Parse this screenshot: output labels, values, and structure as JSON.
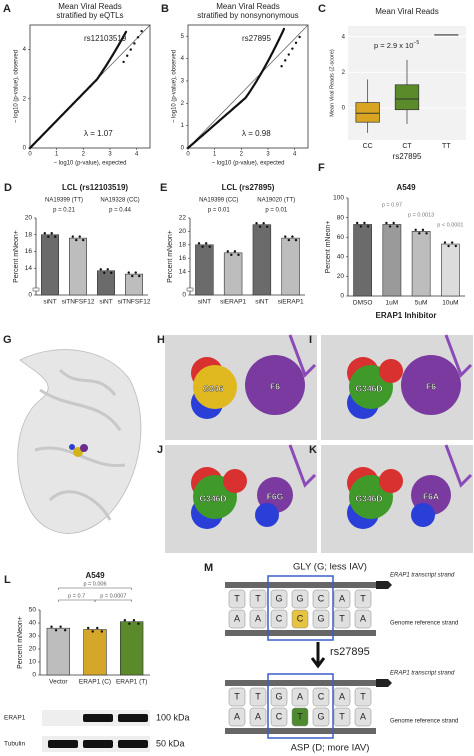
{
  "panels": {
    "A": {
      "letter": "A",
      "title": [
        "Mean Viral Reads",
        "stratified by eQTLs"
      ],
      "snp": "rs12103519",
      "lambda": "λ = 1.07",
      "xlabel": "− log10 (p-value), expected",
      "ylabel": "− log10 (p-value), observed",
      "xlim": [
        0,
        4.5
      ],
      "ylim": [
        0,
        5
      ],
      "xticks": [
        0,
        1,
        2,
        3,
        4
      ],
      "yticks": [
        0,
        2,
        4
      ]
    },
    "B": {
      "letter": "B",
      "title": [
        "Mean Viral Reads",
        "stratified by nonsynonymous"
      ],
      "snp": "rs27895",
      "lambda": "λ = 0.98",
      "xlabel": "− log10 (p-value), expected",
      "ylabel": "− log10 (p-value), observed",
      "xlim": [
        0,
        4.5
      ],
      "ylim": [
        0,
        5.5
      ],
      "xticks": [
        0,
        1,
        2,
        3,
        4
      ],
      "yticks": [
        0,
        1,
        2,
        3,
        4,
        5
      ]
    },
    "C": {
      "letter": "C",
      "title": "Mean Viral Reads",
      "pvalue": "p = 2.9 x 10",
      "pexp": "−5",
      "ylabel": "Mean Viral Reads (Z-score)",
      "xlabel": "rs27895",
      "categories": [
        "CC",
        "CT",
        "TT"
      ],
      "colors": [
        "#d9a520",
        "#5b8a2b",
        "#888888"
      ],
      "ylim": [
        -1.8,
        4.6
      ],
      "yticks": [
        0,
        2,
        4
      ],
      "boxes": [
        {
          "low": -1.4,
          "q1": -0.8,
          "median": -0.3,
          "q3": 0.3,
          "high": 1.6
        },
        {
          "low": -0.9,
          "q1": -0.1,
          "median": 0.5,
          "q3": 1.3,
          "high": 2.7
        },
        {
          "low": 4.1,
          "q1": 4.1,
          "median": 4.1,
          "q3": 4.1,
          "high": 4.1
        }
      ]
    },
    "D": {
      "letter": "D",
      "title": "LCL (rs12103519)",
      "groups": [
        "NA19399 (TT)",
        "NA19328 (CC)"
      ],
      "pvalues": [
        "p = 0.21",
        "p = 0.44"
      ],
      "ylabel": "Percent mNeon+",
      "categories": [
        "siNT",
        "siTNFSF12",
        "siNT",
        "siTNFSF12"
      ],
      "values": [
        18,
        17.6,
        13.7,
        13.3
      ],
      "colors": [
        "#6b6b6b",
        "#bdbdbd",
        "#6b6b6b",
        "#bdbdbd"
      ],
      "ylim": [
        12,
        20
      ],
      "yticks": [
        0,
        14,
        16,
        18,
        20
      ],
      "axis_break": true
    },
    "E": {
      "letter": "E",
      "title": "LCL (rs27895)",
      "groups": [
        "NA19399 (CC)",
        "NA19020 (TT)"
      ],
      "pvalues": [
        "p = 0.01",
        "p = 0.01"
      ],
      "ylabel": "Percent mNeon+",
      "categories": [
        "siNT",
        "siERAP1",
        "siNT",
        "siERAP1"
      ],
      "values": [
        18,
        16.8,
        21,
        19
      ],
      "colors": [
        "#6b6b6b",
        "#bdbdbd",
        "#6b6b6b",
        "#bdbdbd"
      ],
      "ylim": [
        12,
        22
      ],
      "yticks": [
        0,
        14,
        16,
        18,
        20,
        22
      ],
      "axis_break": true
    },
    "F": {
      "letter": "F",
      "title": "A549",
      "pvalues": [
        "p = 0.97",
        "p = 0.0013",
        "p < 0.0001"
      ],
      "ylabel": "Percent mNeon+",
      "xlabel": "ERAP1 Inhibitor",
      "categories": [
        "DMSO",
        "1uM",
        "5uM",
        "10uM"
      ],
      "values": [
        73,
        73,
        66,
        53
      ],
      "colors": [
        "#6b6b6b",
        "#9a9a9a",
        "#bdbdbd",
        "#dcdcdc"
      ],
      "ylim": [
        0,
        100
      ],
      "yticks": [
        0,
        20,
        40,
        60,
        80,
        100
      ],
      "axis_break": false
    },
    "G": {
      "letter": "G"
    },
    "H": {
      "letter": "H",
      "residue": "G346",
      "partner": "F6"
    },
    "I": {
      "letter": "I",
      "residue": "G346D",
      "partner": "F6"
    },
    "J": {
      "letter": "J",
      "residue": "G346D",
      "partner": "F6G"
    },
    "K": {
      "letter": "K",
      "residue": "G346D",
      "partner": "F6A"
    },
    "L": {
      "letter": "L",
      "title": "A549",
      "pvalues": [
        "p = 0.006",
        "p = 0.7",
        "p = 0.0007"
      ],
      "ylabel": "Percent mNeon+",
      "categories": [
        "Vector",
        "ERAP1 (C)",
        "ERAP1 (T)"
      ],
      "values": [
        36,
        35,
        41
      ],
      "colors": [
        "#bdbdbd",
        "#d4a62a",
        "#5a8a2a"
      ],
      "ylim": [
        0,
        50
      ],
      "yticks": [
        0,
        10,
        20,
        30,
        40,
        50
      ],
      "axis_break": false,
      "blot": {
        "rows": [
          "ERAP1",
          "Tubulin"
        ],
        "sizes": [
          "100 kDa",
          "50 kDa"
        ]
      }
    },
    "M": {
      "letter": "M",
      "arrow_label": "rs27895",
      "top": {
        "label": "GLY (G; less IAV)",
        "top_strand": [
          "T",
          "T",
          "G",
          "G",
          "C",
          "A",
          "T"
        ],
        "bottom_strand": [
          "A",
          "A",
          "C",
          "C",
          "G",
          "T",
          "A"
        ]
      },
      "bottom": {
        "label": "ASP (D; more IAV)",
        "top_strand": [
          "T",
          "T",
          "G",
          "A",
          "C",
          "A",
          "T"
        ],
        "bottom_strand": [
          "A",
          "A",
          "C",
          "T",
          "G",
          "T",
          "A"
        ]
      },
      "strand_labels": [
        "ERAP1 transcript strand",
        "Genome reference strand"
      ]
    }
  }
}
